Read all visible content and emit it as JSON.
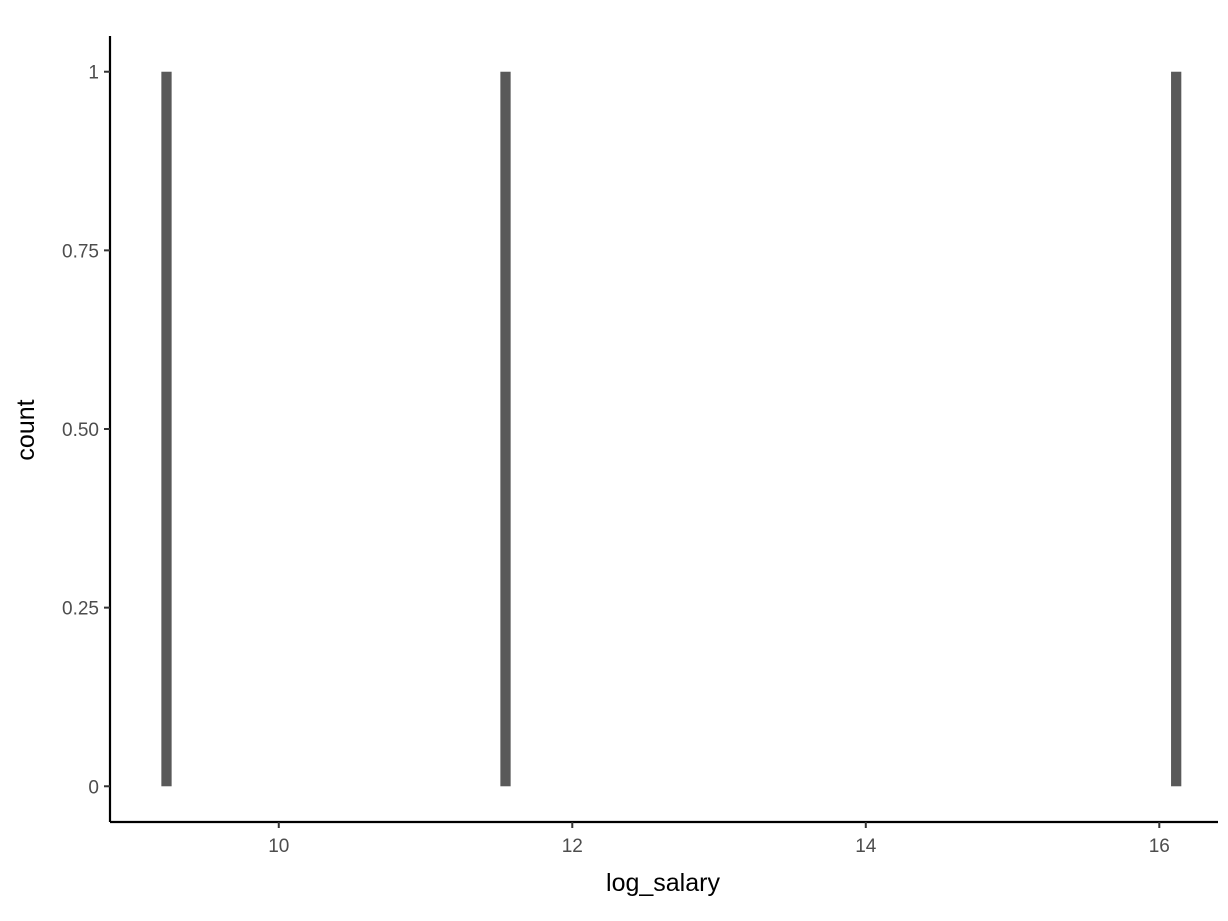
{
  "chart_data": {
    "type": "bar",
    "xlabel": "log_salary",
    "ylabel": "count",
    "xlim": [
      8.85,
      16.4
    ],
    "ylim": [
      -0.05,
      1.05
    ],
    "x_ticks": [
      10,
      12,
      14,
      16
    ],
    "x_tick_labels": [
      "10",
      "12",
      "14",
      "16"
    ],
    "y_ticks": [
      0,
      0.25,
      0.5,
      0.75,
      1
    ],
    "y_tick_labels": [
      "0",
      "0.25",
      "0.50",
      "0.75",
      "1"
    ],
    "bins": [
      {
        "x_start": 9.2,
        "x_end": 9.27,
        "count": 1
      },
      {
        "x_start": 11.51,
        "x_end": 11.58,
        "count": 1
      },
      {
        "x_start": 16.08,
        "x_end": 16.15,
        "count": 1
      }
    ],
    "grid": false,
    "legend": "none",
    "bar_color": "#595959",
    "axis_color": "#000000",
    "tick_label_color": "#4d4d4d"
  }
}
